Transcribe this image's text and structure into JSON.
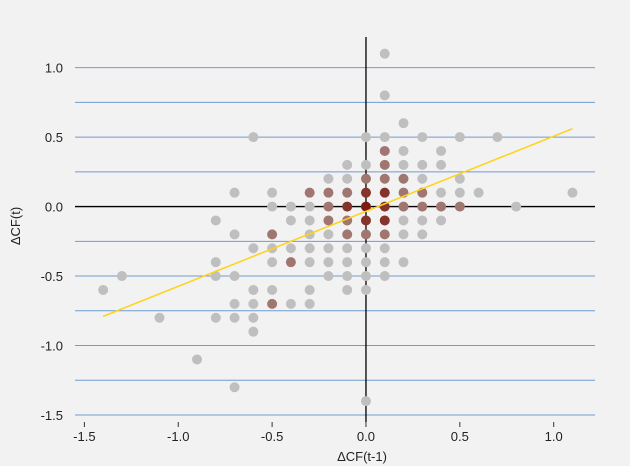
{
  "chart_data": {
    "type": "scatter",
    "xlabel": "ΔCF(t-1)",
    "ylabel": "ΔCF(t)",
    "xlim": [
      -1.55,
      1.22
    ],
    "ylim": [
      -1.55,
      1.22
    ],
    "xticks": [
      "-1.5",
      "-1.0",
      "-0.5",
      "0.0",
      "0.5",
      "1.0"
    ],
    "yticks": [
      "-1.5",
      "-1.0",
      "-0.5",
      "0.0",
      "0.5",
      "1.0"
    ],
    "xtick_values": [
      -1.5,
      -1.0,
      -0.5,
      0.0,
      0.5,
      1.0
    ],
    "ytick_values": [
      -1.5,
      -1.0,
      -0.5,
      0.0,
      0.5,
      1.0
    ],
    "gridlines_y": [
      -1.5,
      -1.25,
      -1.0,
      -0.75,
      -0.5,
      -0.25,
      0.0,
      0.25,
      0.5,
      0.75,
      1.0
    ],
    "zero_lines": true,
    "regression_line": {
      "x": [
        -1.4,
        1.1
      ],
      "y": [
        -0.79,
        0.56
      ],
      "color": "#ffd21a"
    },
    "colors": {
      "background": "#f2f2f2",
      "grid": "#6f9bd0",
      "zero_line": "#000000",
      "low_density": "#bfbfbf",
      "high_density": "#7a1c10"
    },
    "points": [
      {
        "x": -1.4,
        "y": -0.6,
        "d": 0
      },
      {
        "x": -1.3,
        "y": -0.5,
        "d": 0
      },
      {
        "x": -1.1,
        "y": -0.8,
        "d": 0
      },
      {
        "x": -0.9,
        "y": -1.1,
        "d": 0
      },
      {
        "x": -0.8,
        "y": -0.1,
        "d": 0
      },
      {
        "x": -0.8,
        "y": -0.4,
        "d": 0
      },
      {
        "x": -0.8,
        "y": -0.5,
        "d": 0
      },
      {
        "x": -0.8,
        "y": -0.8,
        "d": 0
      },
      {
        "x": -0.7,
        "y": 0.1,
        "d": 0
      },
      {
        "x": -0.7,
        "y": -0.2,
        "d": 0
      },
      {
        "x": -0.7,
        "y": -0.5,
        "d": 0
      },
      {
        "x": -0.7,
        "y": -0.7,
        "d": 0
      },
      {
        "x": -0.7,
        "y": -0.8,
        "d": 0
      },
      {
        "x": -0.7,
        "y": -1.3,
        "d": 0
      },
      {
        "x": -0.6,
        "y": 0.5,
        "d": 0
      },
      {
        "x": -0.6,
        "y": -0.3,
        "d": 0
      },
      {
        "x": -0.6,
        "y": -0.6,
        "d": 0
      },
      {
        "x": -0.6,
        "y": -0.7,
        "d": 0
      },
      {
        "x": -0.6,
        "y": -0.8,
        "d": 0
      },
      {
        "x": -0.6,
        "y": -0.9,
        "d": 0
      },
      {
        "x": -0.5,
        "y": 0.1,
        "d": 0
      },
      {
        "x": -0.5,
        "y": 0.0,
        "d": 0
      },
      {
        "x": -0.5,
        "y": -0.2,
        "d": 0.45
      },
      {
        "x": -0.5,
        "y": -0.3,
        "d": 0
      },
      {
        "x": -0.5,
        "y": -0.4,
        "d": 0
      },
      {
        "x": -0.5,
        "y": -0.6,
        "d": 0
      },
      {
        "x": -0.5,
        "y": -0.7,
        "d": 0.45
      },
      {
        "x": -0.4,
        "y": 0.0,
        "d": 0
      },
      {
        "x": -0.4,
        "y": -0.1,
        "d": 0
      },
      {
        "x": -0.4,
        "y": -0.3,
        "d": 0
      },
      {
        "x": -0.4,
        "y": -0.4,
        "d": 0.45
      },
      {
        "x": -0.4,
        "y": -0.7,
        "d": 0
      },
      {
        "x": -0.3,
        "y": 0.1,
        "d": 0.45
      },
      {
        "x": -0.3,
        "y": 0.0,
        "d": 0
      },
      {
        "x": -0.3,
        "y": -0.1,
        "d": 0
      },
      {
        "x": -0.3,
        "y": -0.2,
        "d": 0
      },
      {
        "x": -0.3,
        "y": -0.3,
        "d": 0
      },
      {
        "x": -0.3,
        "y": -0.4,
        "d": 0
      },
      {
        "x": -0.3,
        "y": -0.6,
        "d": 0
      },
      {
        "x": -0.3,
        "y": -0.7,
        "d": 0
      },
      {
        "x": -0.2,
        "y": 0.2,
        "d": 0
      },
      {
        "x": -0.2,
        "y": 0.1,
        "d": 0.45
      },
      {
        "x": -0.2,
        "y": 0.0,
        "d": 0.45
      },
      {
        "x": -0.2,
        "y": -0.1,
        "d": 0.45
      },
      {
        "x": -0.2,
        "y": -0.2,
        "d": 0
      },
      {
        "x": -0.2,
        "y": -0.3,
        "d": 0
      },
      {
        "x": -0.2,
        "y": -0.4,
        "d": 0
      },
      {
        "x": -0.2,
        "y": -0.5,
        "d": 0
      },
      {
        "x": -0.1,
        "y": 0.3,
        "d": 0
      },
      {
        "x": -0.1,
        "y": 0.2,
        "d": 0
      },
      {
        "x": -0.1,
        "y": 0.1,
        "d": 0.45
      },
      {
        "x": -0.1,
        "y": 0.0,
        "d": 0.85
      },
      {
        "x": -0.1,
        "y": -0.1,
        "d": 0.45
      },
      {
        "x": -0.1,
        "y": -0.2,
        "d": 0.45
      },
      {
        "x": -0.1,
        "y": -0.3,
        "d": 0
      },
      {
        "x": -0.1,
        "y": -0.4,
        "d": 0
      },
      {
        "x": -0.1,
        "y": -0.5,
        "d": 0
      },
      {
        "x": -0.1,
        "y": -0.6,
        "d": 0
      },
      {
        "x": 0.0,
        "y": 0.5,
        "d": 0
      },
      {
        "x": 0.0,
        "y": 0.3,
        "d": 0
      },
      {
        "x": 0.0,
        "y": 0.2,
        "d": 0.45
      },
      {
        "x": 0.0,
        "y": 0.1,
        "d": 0.85
      },
      {
        "x": 0.0,
        "y": 0.0,
        "d": 1.0
      },
      {
        "x": 0.0,
        "y": -0.1,
        "d": 0.85
      },
      {
        "x": 0.0,
        "y": -0.2,
        "d": 0.45
      },
      {
        "x": 0.0,
        "y": -0.3,
        "d": 0
      },
      {
        "x": 0.0,
        "y": -0.4,
        "d": 0
      },
      {
        "x": 0.0,
        "y": -0.5,
        "d": 0
      },
      {
        "x": 0.0,
        "y": -0.6,
        "d": 0
      },
      {
        "x": 0.0,
        "y": -1.4,
        "d": 0
      },
      {
        "x": 0.1,
        "y": 1.1,
        "d": 0
      },
      {
        "x": 0.1,
        "y": 0.8,
        "d": 0
      },
      {
        "x": 0.1,
        "y": 0.5,
        "d": 0
      },
      {
        "x": 0.1,
        "y": 0.4,
        "d": 0.45
      },
      {
        "x": 0.1,
        "y": 0.3,
        "d": 0.45
      },
      {
        "x": 0.1,
        "y": 0.2,
        "d": 0.45
      },
      {
        "x": 0.1,
        "y": 0.1,
        "d": 0.85
      },
      {
        "x": 0.1,
        "y": 0.0,
        "d": 0.85
      },
      {
        "x": 0.1,
        "y": -0.1,
        "d": 0.85
      },
      {
        "x": 0.1,
        "y": -0.2,
        "d": 0.45
      },
      {
        "x": 0.1,
        "y": -0.3,
        "d": 0
      },
      {
        "x": 0.1,
        "y": -0.4,
        "d": 0
      },
      {
        "x": 0.1,
        "y": -0.5,
        "d": 0
      },
      {
        "x": 0.2,
        "y": 0.6,
        "d": 0
      },
      {
        "x": 0.2,
        "y": 0.4,
        "d": 0
      },
      {
        "x": 0.2,
        "y": 0.3,
        "d": 0
      },
      {
        "x": 0.2,
        "y": 0.2,
        "d": 0.45
      },
      {
        "x": 0.2,
        "y": 0.1,
        "d": 0.45
      },
      {
        "x": 0.2,
        "y": 0.0,
        "d": 0.45
      },
      {
        "x": 0.2,
        "y": -0.1,
        "d": 0
      },
      {
        "x": 0.2,
        "y": -0.2,
        "d": 0
      },
      {
        "x": 0.2,
        "y": -0.4,
        "d": 0
      },
      {
        "x": 0.3,
        "y": 0.5,
        "d": 0
      },
      {
        "x": 0.3,
        "y": 0.3,
        "d": 0
      },
      {
        "x": 0.3,
        "y": 0.2,
        "d": 0
      },
      {
        "x": 0.3,
        "y": 0.1,
        "d": 0.45
      },
      {
        "x": 0.3,
        "y": 0.0,
        "d": 0.45
      },
      {
        "x": 0.3,
        "y": -0.1,
        "d": 0
      },
      {
        "x": 0.3,
        "y": -0.2,
        "d": 0
      },
      {
        "x": 0.4,
        "y": 0.4,
        "d": 0
      },
      {
        "x": 0.4,
        "y": 0.3,
        "d": 0
      },
      {
        "x": 0.4,
        "y": 0.1,
        "d": 0
      },
      {
        "x": 0.4,
        "y": 0.0,
        "d": 0.45
      },
      {
        "x": 0.4,
        "y": -0.1,
        "d": 0
      },
      {
        "x": 0.5,
        "y": 0.5,
        "d": 0
      },
      {
        "x": 0.5,
        "y": 0.2,
        "d": 0
      },
      {
        "x": 0.5,
        "y": 0.1,
        "d": 0
      },
      {
        "x": 0.5,
        "y": 0.0,
        "d": 0.45
      },
      {
        "x": 0.6,
        "y": 0.1,
        "d": 0
      },
      {
        "x": 0.7,
        "y": 0.5,
        "d": 0
      },
      {
        "x": 0.8,
        "y": 0.0,
        "d": 0
      },
      {
        "x": 1.1,
        "y": 0.1,
        "d": 0
      }
    ]
  }
}
